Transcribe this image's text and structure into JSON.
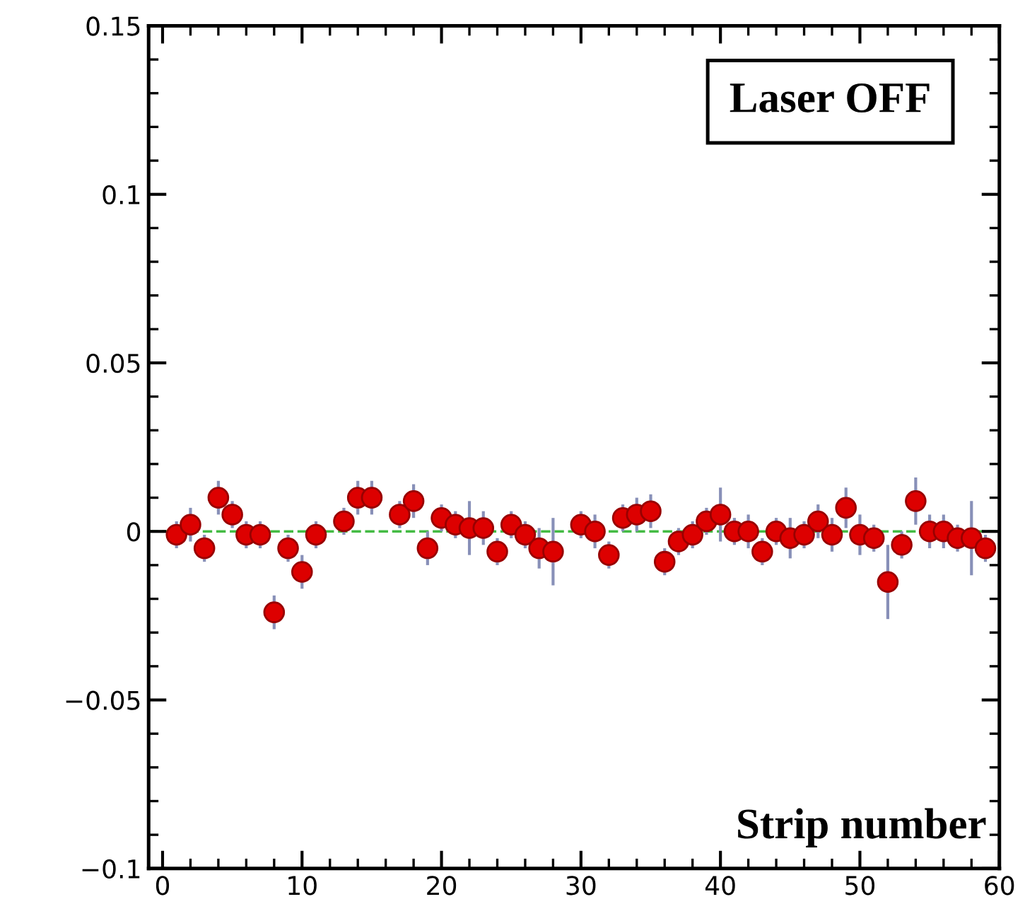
{
  "chart_data": {
    "type": "scatter",
    "xlabel": "Strip number",
    "annotations": [
      "Laser OFF"
    ],
    "x": [
      1,
      2,
      3,
      4,
      5,
      6,
      7,
      8,
      9,
      10,
      11,
      13,
      14,
      15,
      17,
      18,
      19,
      20,
      21,
      22,
      23,
      24,
      25,
      26,
      27,
      28,
      30,
      31,
      32,
      33,
      34,
      35,
      36,
      37,
      38,
      39,
      40,
      41,
      42,
      43,
      44,
      45,
      46,
      47,
      48,
      49,
      50,
      51,
      52,
      53,
      54,
      55,
      56,
      57,
      58,
      59
    ],
    "series": [
      {
        "color": "#dd0000",
        "values": [
          -0.001,
          0.002,
          -0.005,
          0.01,
          0.005,
          -0.001,
          -0.001,
          -0.024,
          -0.005,
          -0.012,
          -0.001,
          0.003,
          0.01,
          0.01,
          0.005,
          0.009,
          -0.005,
          0.004,
          0.002,
          0.001,
          0.001,
          -0.006,
          0.002,
          -0.001,
          -0.005,
          -0.006,
          0.002,
          0,
          -0.007,
          0.004,
          0.005,
          0.006,
          -0.009,
          -0.003,
          -0.001,
          0.003,
          0.005,
          0,
          0,
          -0.006,
          0,
          -0.002,
          -0.001,
          0.003,
          -0.001,
          0.007,
          -0.001,
          -0.002,
          -0.015,
          -0.004,
          0.009,
          0,
          0,
          -0.002,
          -0.002,
          -0.005
        ],
        "errors": [
          0.004,
          0.005,
          0.004,
          0.005,
          0.004,
          0.004,
          0.004,
          0.005,
          0.004,
          0.005,
          0.004,
          0.004,
          0.005,
          0.005,
          0.004,
          0.005,
          0.005,
          0.004,
          0.004,
          0.008,
          0.005,
          0.004,
          0.004,
          0.004,
          0.006,
          0.01,
          0.004,
          0.005,
          0.004,
          0.004,
          0.005,
          0.005,
          0.004,
          0.004,
          0.004,
          0.004,
          0.008,
          0.004,
          0.005,
          0.004,
          0.004,
          0.006,
          0.004,
          0.005,
          0.005,
          0.006,
          0.006,
          0.004,
          0.011,
          0.004,
          0.007,
          0.005,
          0.005,
          0.004,
          0.011,
          0.004
        ]
      }
    ],
    "xlim": [
      -1,
      60
    ],
    "ylim": [
      -0.1,
      0.15
    ],
    "xticks": [
      0,
      10,
      20,
      30,
      40,
      50,
      60
    ],
    "yticks": [
      {
        "value": -0.1,
        "label": "−0.1"
      },
      {
        "value": -0.05,
        "label": "−0.05"
      },
      {
        "value": 0,
        "label": "0"
      },
      {
        "value": 0.05,
        "label": "0.05"
      },
      {
        "value": 0.1,
        "label": "0.1"
      },
      {
        "value": 0.15,
        "label": "0.15"
      }
    ],
    "ref_lines": [
      {
        "axis": "y",
        "value": 0,
        "color": "#44bb44",
        "line_style": "dashed"
      }
    ],
    "marker": "circle",
    "grid": false
  }
}
